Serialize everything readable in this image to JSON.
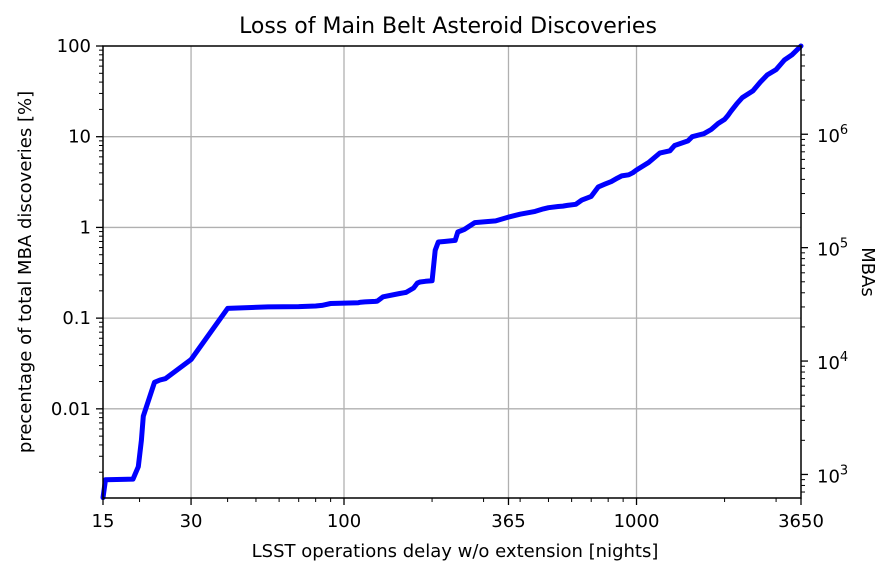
{
  "chart_data": {
    "type": "line",
    "title": "Loss of Main Belt Asteroid Discoveries",
    "xlabel": "LSST operations delay w/o extension [nights]",
    "ylabel": "precentage of total MBA discoveries [%]",
    "y2label": "MBAs",
    "x_scale": "log",
    "y_scale": "log",
    "y2_scale": "log",
    "xlim": [
      15,
      3650
    ],
    "ylim": [
      0.00104,
      100
    ],
    "y2lim": [
      620,
      6000000
    ],
    "grid": true,
    "x_ticks": [
      {
        "value": 15,
        "label": "15"
      },
      {
        "value": 30,
        "label": "30"
      },
      {
        "value": 100,
        "label": "100"
      },
      {
        "value": 365,
        "label": "365"
      },
      {
        "value": 1000,
        "label": "1000"
      },
      {
        "value": 3650,
        "label": "3650"
      }
    ],
    "x_minor_ticks": [
      20,
      40,
      50,
      60,
      70,
      80,
      90,
      200,
      300,
      400,
      500,
      600,
      700,
      800,
      900,
      2000,
      3000
    ],
    "y_ticks": [
      {
        "value": 0.01,
        "label": "0.01"
      },
      {
        "value": 0.1,
        "label": "0.1"
      },
      {
        "value": 1,
        "label": "1"
      },
      {
        "value": 10,
        "label": "10"
      },
      {
        "value": 100,
        "label": "100"
      }
    ],
    "y2_ticks": [
      {
        "value": 1000,
        "base": "10",
        "exp": "3"
      },
      {
        "value": 10000,
        "base": "10",
        "exp": "4"
      },
      {
        "value": 100000,
        "base": "10",
        "exp": "5"
      },
      {
        "value": 1000000,
        "base": "10",
        "exp": "6"
      }
    ],
    "series": [
      {
        "color": "#0000ff",
        "x": [
          15,
          15.3,
          19,
          19.8,
          20.3,
          20.6,
          22.5,
          23.5,
          24.5,
          30,
          40,
          55,
          70,
          80,
          84,
          90,
          112,
          114,
          118,
          128,
          130,
          136,
          155,
          160,
          163,
          173,
          178,
          182,
          190,
          200,
          205,
          210,
          220,
          240,
          245,
          258,
          280,
          300,
          330,
          365,
          400,
          450,
          480,
          500,
          540,
          560,
          580,
          620,
          650,
          700,
          740,
          780,
          820,
          860,
          890,
          940,
          970,
          1000,
          1100,
          1200,
          1300,
          1350,
          1500,
          1550,
          1700,
          1800,
          1900,
          2000,
          2050,
          2100,
          2200,
          2300,
          2500,
          2650,
          2800,
          3000,
          3200,
          3400,
          3650
        ],
        "y": [
          0.00105,
          0.00165,
          0.00168,
          0.0023,
          0.0045,
          0.0083,
          0.0196,
          0.0208,
          0.0215,
          0.035,
          0.128,
          0.133,
          0.134,
          0.136,
          0.138,
          0.145,
          0.148,
          0.15,
          0.151,
          0.153,
          0.154,
          0.172,
          0.187,
          0.19,
          0.192,
          0.215,
          0.243,
          0.25,
          0.255,
          0.258,
          0.56,
          0.69,
          0.7,
          0.72,
          0.89,
          0.95,
          1.13,
          1.15,
          1.18,
          1.3,
          1.4,
          1.5,
          1.6,
          1.65,
          1.7,
          1.72,
          1.75,
          1.8,
          2.0,
          2.2,
          2.8,
          3.0,
          3.2,
          3.5,
          3.7,
          3.8,
          4.0,
          4.3,
          5.2,
          6.6,
          7.0,
          8.0,
          9.0,
          10.0,
          10.8,
          12.0,
          14.0,
          15.5,
          17.0,
          19.0,
          23.0,
          27.0,
          32.0,
          40.0,
          48.0,
          55.0,
          70.0,
          80.0,
          100
        ]
      }
    ]
  }
}
